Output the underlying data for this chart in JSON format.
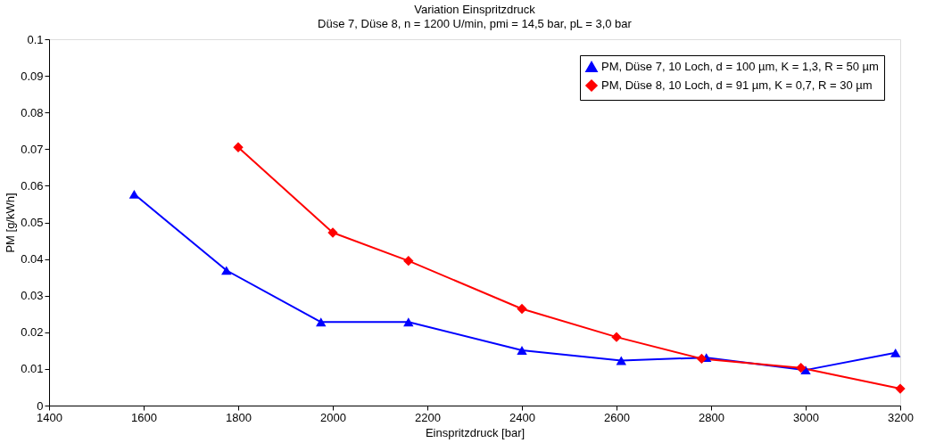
{
  "chart_data": {
    "type": "line",
    "title": "Variation Einspritzdruck",
    "subtitle": "Düse 7, Düse 8, n = 1200 U/min, pmi = 14,5 bar, pL = 3,0 bar",
    "xlabel": "Einspritzdruck [bar]",
    "ylabel": "PM [g/kWh]",
    "xlim": [
      1400,
      3200
    ],
    "xticks": [
      1400,
      1600,
      1800,
      2000,
      2200,
      2400,
      2600,
      2800,
      3000,
      3200
    ],
    "ylim": [
      0,
      0.1
    ],
    "yticks": [
      0,
      0.01,
      0.02,
      0.03,
      0.04,
      0.05,
      0.06,
      0.07,
      0.08,
      0.09,
      0.1
    ],
    "grid": false,
    "legend": "top right",
    "line_style": "solid",
    "series": [
      {
        "name": "PM, Düse 7, 10 Loch, d = 100 µm, K = 1,3, R = 50 µm",
        "color": "#0000ff",
        "marker": "triangle",
        "x": [
          1580,
          1775,
          1975,
          2160,
          2400,
          2610,
          2790,
          3000,
          3190
        ],
        "values": [
          0.0577,
          0.0369,
          0.0228,
          0.0228,
          0.0151,
          0.0123,
          0.0131,
          0.0097,
          0.0144
        ]
      },
      {
        "name": "PM, Düse 8, 10 Loch, d = 91 µm, K = 0,7, R = 30 µm",
        "color": "#ff0000",
        "marker": "diamond",
        "x": [
          1800,
          2000,
          2160,
          2400,
          2600,
          2780,
          2990,
          3200
        ],
        "values": [
          0.0705,
          0.0472,
          0.0395,
          0.0264,
          0.0187,
          0.0128,
          0.0103,
          0.0046
        ]
      }
    ]
  }
}
